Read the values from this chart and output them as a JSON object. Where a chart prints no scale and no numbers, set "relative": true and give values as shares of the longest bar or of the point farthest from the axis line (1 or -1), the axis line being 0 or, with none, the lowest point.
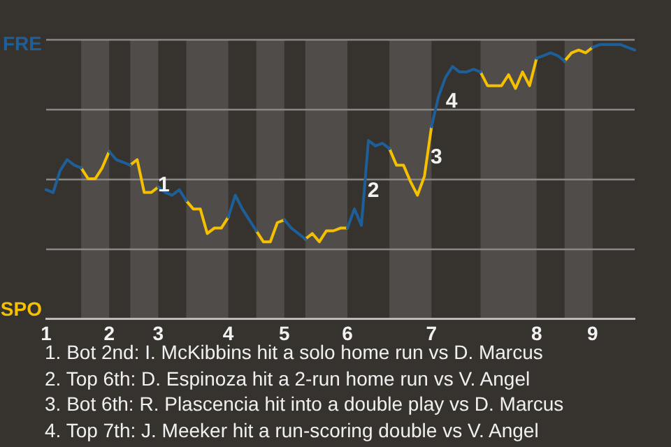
{
  "chart_data": {
    "type": "line",
    "relative": true,
    "categories": [
      "1",
      null,
      null,
      null,
      null,
      null,
      null,
      null,
      null,
      "2",
      null,
      null,
      null,
      null,
      null,
      null,
      "3",
      null,
      null,
      null,
      null,
      null,
      null,
      null,
      null,
      null,
      "4",
      null,
      null,
      null,
      null,
      null,
      null,
      null,
      "5",
      null,
      null,
      null,
      null,
      null,
      null,
      null,
      null,
      "6",
      null,
      null,
      null,
      null,
      null,
      null,
      null,
      null,
      null,
      null,
      null,
      "7",
      null,
      null,
      null,
      null,
      null,
      null,
      null,
      null,
      null,
      null,
      null,
      null,
      null,
      null,
      "8",
      null,
      null,
      null,
      null,
      null,
      null,
      null,
      "9",
      null,
      null,
      null,
      null,
      null,
      null
    ],
    "series": [
      {
        "color": "#1f5f99",
        "values": [
          0.47,
          0.46,
          0.54,
          0.58,
          0.56,
          0.55,
          null,
          null,
          null,
          0.61,
          0.58,
          0.57,
          0.56,
          null,
          null,
          null,
          0.48,
          0.46,
          0.45,
          0.47,
          0.43,
          null,
          null,
          null,
          null,
          null,
          0.37,
          0.45,
          0.4,
          0.36,
          0.32,
          null,
          null,
          null,
          0.36,
          0.33,
          0.31,
          0.29,
          null,
          null,
          null,
          null,
          null,
          0.33,
          0.4,
          0.34,
          0.65,
          0.63,
          0.64,
          0.62,
          null,
          null,
          null,
          null,
          null,
          0.7,
          0.81,
          0.88,
          0.92,
          0.9,
          0.9,
          0.91,
          0.9,
          null,
          null,
          null,
          null,
          null,
          null,
          null,
          0.95,
          0.96,
          0.97,
          0.96,
          0.94,
          null,
          null,
          null,
          0.99,
          1,
          1,
          1,
          1,
          0.99,
          0.98
        ]
      },
      {
        "color": "#f5c000",
        "values": [
          null,
          null,
          null,
          null,
          null,
          0.55,
          0.51,
          0.51,
          0.55,
          0.61,
          null,
          null,
          0.56,
          0.58,
          0.46,
          0.46,
          0.48,
          null,
          null,
          null,
          0.43,
          0.4,
          0.4,
          0.31,
          0.33,
          0.33,
          0.37,
          null,
          null,
          null,
          0.32,
          0.28,
          0.28,
          0.35,
          0.36,
          null,
          null,
          0.29,
          0.31,
          0.28,
          0.32,
          0.32,
          0.33,
          0.33,
          null,
          null,
          null,
          null,
          null,
          0.62,
          0.56,
          0.56,
          0.5,
          0.45,
          0.52,
          0.7,
          null,
          null,
          null,
          null,
          null,
          null,
          0.9,
          0.85,
          0.85,
          0.85,
          0.89,
          0.84,
          0.9,
          0.85,
          0.95,
          null,
          null,
          null,
          0.94,
          0.97,
          0.98,
          0.97,
          0.99,
          null,
          null,
          null,
          null,
          null,
          null
        ]
      }
    ],
    "grid": "y",
    "legend": false,
    "marker": "none",
    "line_style": "solid",
    "annotations": [
      "FRE",
      "SPO",
      "1",
      "2",
      "3",
      "4",
      "1. Bot 2nd: I. McKibbins hit a solo home run vs D. Marcus",
      "2. Top 6th: D. Espinoza hit a 2-run home run vs V. Angel",
      "3. Bot 6th: R. Plascencia hit into a double play vs D. Marcus",
      "4. Top 7th: J. Meeker hit a run-scoring double vs V. Angel"
    ]
  }
}
